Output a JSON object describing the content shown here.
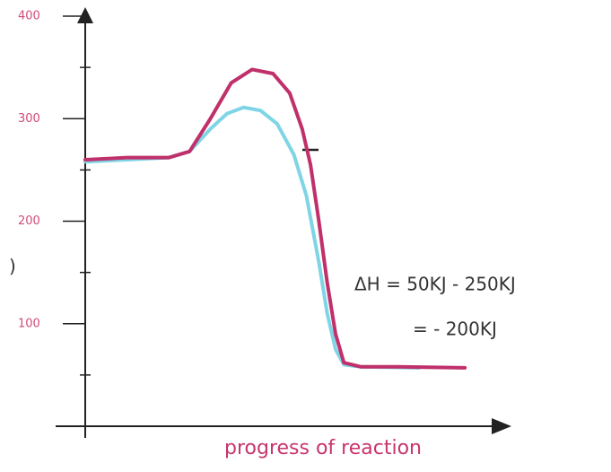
{
  "chart_data": {
    "type": "line",
    "ylabel": ")",
    "xlabel": "progress of reaction",
    "annotations": [
      "ΔH = 50KJ - 250KJ",
      "= - 200KJ"
    ],
    "xlim": [
      0,
      100
    ],
    "ylim": [
      0,
      400
    ],
    "yticks": [
      100,
      200,
      300,
      400
    ],
    "yminor": [
      50,
      150,
      250,
      350
    ],
    "series": [
      {
        "color": "#c0306a",
        "x": [
          0,
          10,
          20,
          25,
          30,
          35,
          40,
          45,
          49,
          52,
          54,
          56,
          58,
          60,
          62,
          66,
          75,
          91
        ],
        "values": [
          260,
          262,
          262,
          268,
          300,
          335,
          348,
          344,
          325,
          290,
          255,
          200,
          140,
          90,
          62,
          58,
          58,
          57
        ]
      },
      {
        "color": "#7fd4e6",
        "x": [
          0,
          10,
          20,
          25,
          30,
          34,
          38,
          42,
          46,
          50,
          53,
          56,
          58,
          60,
          62,
          66,
          80
        ],
        "values": [
          258,
          260,
          262,
          268,
          290,
          305,
          311,
          308,
          295,
          265,
          225,
          160,
          110,
          75,
          60,
          58,
          57
        ]
      }
    ]
  }
}
